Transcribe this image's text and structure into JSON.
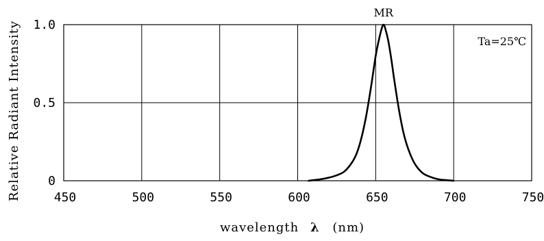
{
  "chart_data": {
    "type": "line",
    "xlabel_prefix": "wavelength",
    "xlabel_symbol": "λ",
    "xlabel_suffix": "(nm)",
    "ylabel": "Relative Radiant Intensity",
    "xlim": [
      450,
      750
    ],
    "ylim": [
      0,
      1.0
    ],
    "x_ticks": [
      450,
      500,
      550,
      600,
      650,
      700,
      750
    ],
    "x_tick_labels": [
      "450",
      "500",
      "550",
      "600",
      "650",
      "700",
      "750"
    ],
    "y_ticks": [
      0,
      0.5,
      1.0
    ],
    "y_tick_labels": [
      "0",
      "0.5",
      "1.0"
    ],
    "grid": true,
    "series": [
      {
        "name": "MR",
        "color": "#000000",
        "x": [
          607,
          615,
          620,
          625,
          630,
          635,
          638,
          641,
          644,
          647,
          650,
          652,
          654,
          655,
          656,
          658,
          660,
          662,
          665,
          668,
          671,
          675,
          680,
          685,
          690,
          695,
          700
        ],
        "y": [
          0.0,
          0.01,
          0.02,
          0.035,
          0.06,
          0.12,
          0.18,
          0.28,
          0.42,
          0.6,
          0.8,
          0.9,
          0.98,
          1.0,
          0.98,
          0.9,
          0.78,
          0.64,
          0.45,
          0.3,
          0.2,
          0.11,
          0.05,
          0.025,
          0.01,
          0.004,
          0.0
        ]
      }
    ],
    "annotations": [
      {
        "text": "MR",
        "x": 655,
        "y": 1.0
      },
      {
        "text": "Ta=25℃",
        "position": "top-right"
      }
    ]
  }
}
